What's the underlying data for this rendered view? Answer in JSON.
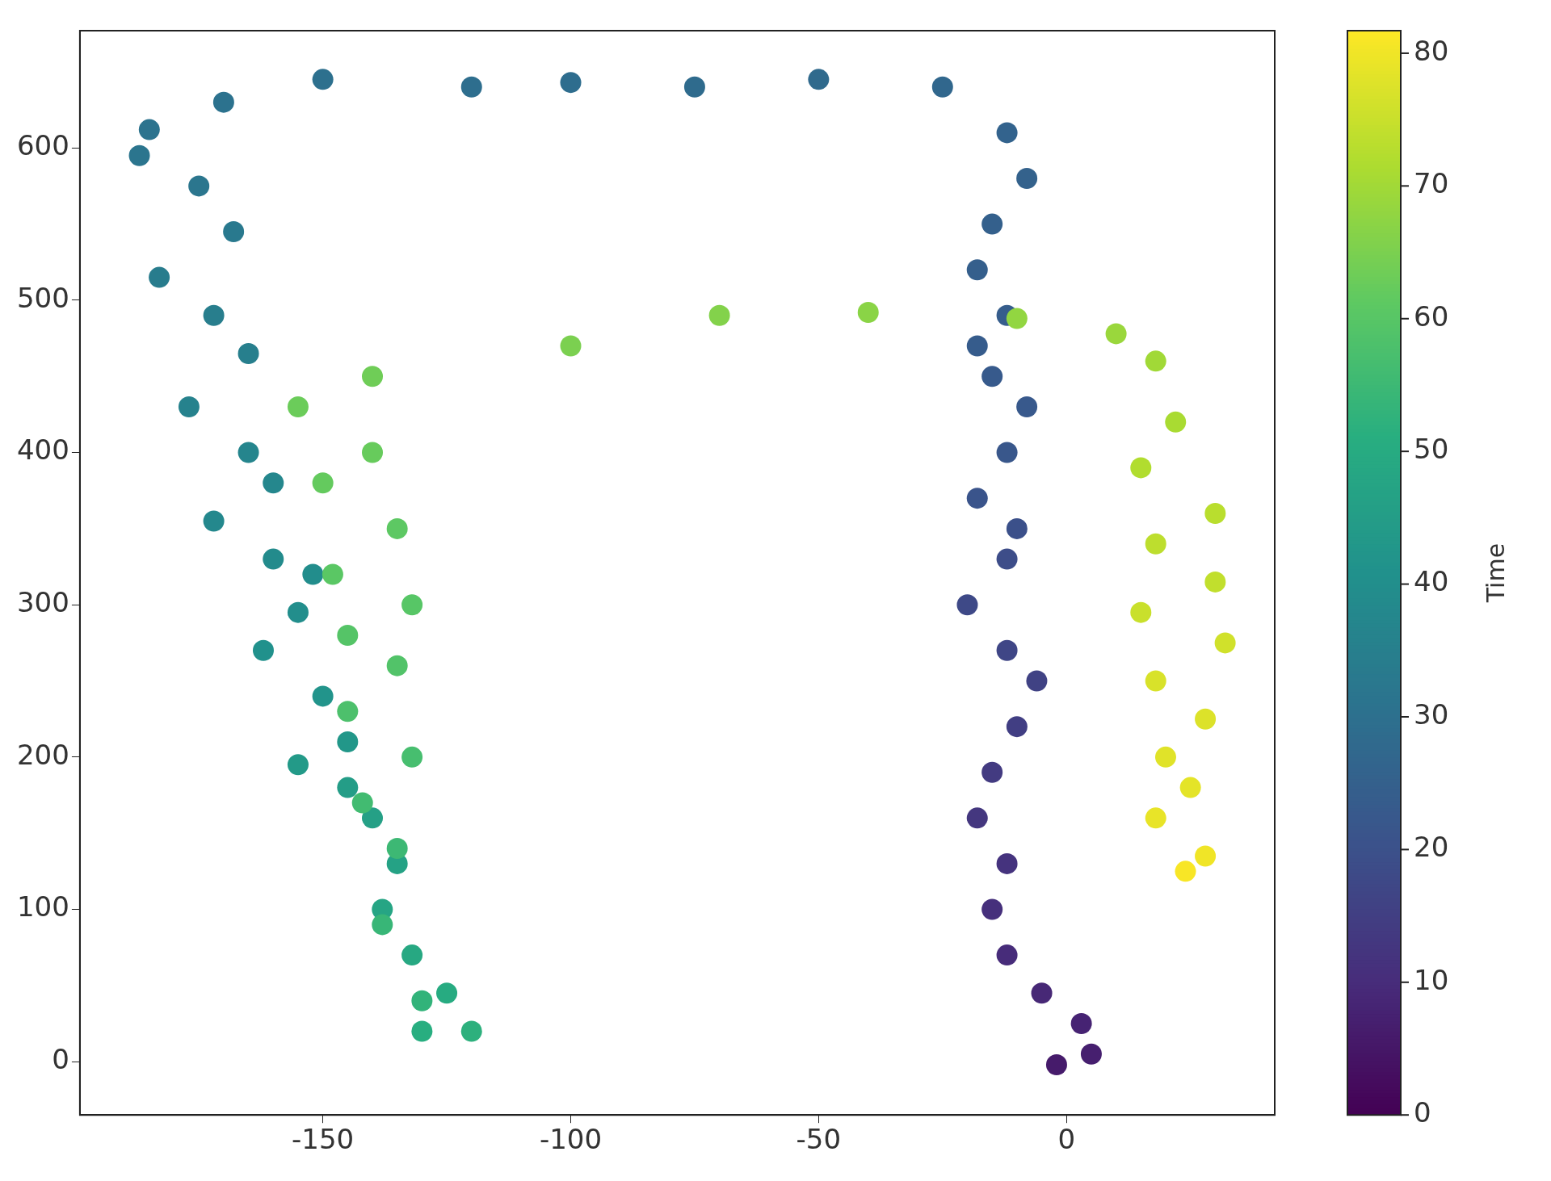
{
  "chart_data": {
    "type": "scatter",
    "clabel": "Time",
    "xlim": [
      -199,
      42
    ],
    "ylim": [
      -35,
      677
    ],
    "xticks": [
      -150,
      -100,
      -50,
      0
    ],
    "yticks": [
      0,
      100,
      200,
      300,
      400,
      500,
      600
    ],
    "clim": [
      0,
      81.7
    ],
    "cticks": [
      0,
      10,
      20,
      30,
      40,
      50,
      60,
      70,
      80
    ],
    "grid": false,
    "marker": "circle",
    "x": [
      -2,
      5,
      3,
      -5,
      -12,
      -15,
      -12,
      -18,
      -15,
      -10,
      -6,
      -12,
      -20,
      -12,
      -10,
      -18,
      -12,
      -8,
      -15,
      -18,
      -12,
      -18,
      -15,
      -8,
      -12,
      -25,
      -50,
      -75,
      -100,
      -120,
      -150,
      -170,
      -185,
      -187,
      -175,
      -168,
      -183,
      -172,
      -165,
      -177,
      -165,
      -160,
      -172,
      -160,
      -152,
      -155,
      -162,
      -150,
      -145,
      -155,
      -145,
      -140,
      -135,
      -138,
      -132,
      -125,
      -130,
      -120,
      -130,
      -138,
      -135,
      -142,
      -132,
      -145,
      -135,
      -145,
      -132,
      -148,
      -135,
      -150,
      -140,
      -155,
      -140,
      -100,
      -70,
      -40,
      -10,
      10,
      18,
      22,
      15,
      30,
      18,
      30,
      15,
      32,
      18,
      28,
      20,
      25,
      18,
      28,
      24
    ],
    "values": [
      -2,
      5,
      25,
      45,
      70,
      100,
      130,
      160,
      190,
      220,
      250,
      270,
      300,
      330,
      350,
      370,
      400,
      430,
      450,
      470,
      490,
      520,
      550,
      580,
      610,
      640,
      645,
      640,
      643,
      640,
      645,
      630,
      612,
      595,
      575,
      545,
      515,
      490,
      465,
      430,
      400,
      380,
      355,
      330,
      320,
      295,
      270,
      240,
      210,
      195,
      180,
      160,
      130,
      100,
      70,
      45,
      20,
      20,
      40,
      90,
      140,
      170,
      200,
      230,
      260,
      280,
      300,
      320,
      350,
      380,
      400,
      430,
      450,
      470,
      490,
      492,
      488,
      478,
      460,
      420,
      390,
      360,
      340,
      315,
      295,
      275,
      250,
      225,
      200,
      180,
      160,
      135,
      125
    ],
    "cvalues": [
      6,
      7,
      8,
      9,
      10,
      11,
      12,
      13,
      14,
      15,
      16,
      17,
      18,
      19,
      20,
      21,
      22,
      22.5,
      23,
      23.5,
      24,
      24.5,
      25,
      25.5,
      26,
      27,
      28,
      28.5,
      29,
      29.5,
      30,
      30.5,
      31,
      31.5,
      32,
      33,
      34,
      34.5,
      35,
      36,
      37,
      37.5,
      38,
      39,
      39.5,
      40,
      41,
      42,
      43,
      44,
      45,
      46,
      47,
      48,
      49,
      50,
      51,
      52,
      53,
      54,
      55,
      56,
      57,
      58,
      59,
      59.5,
      60,
      60.5,
      61,
      62,
      62.5,
      63,
      63.5,
      65,
      66,
      67,
      68,
      69,
      70,
      71,
      72,
      73,
      73.5,
      74,
      75,
      76,
      77,
      77.5,
      78,
      78.5,
      79,
      80,
      81
    ]
  }
}
